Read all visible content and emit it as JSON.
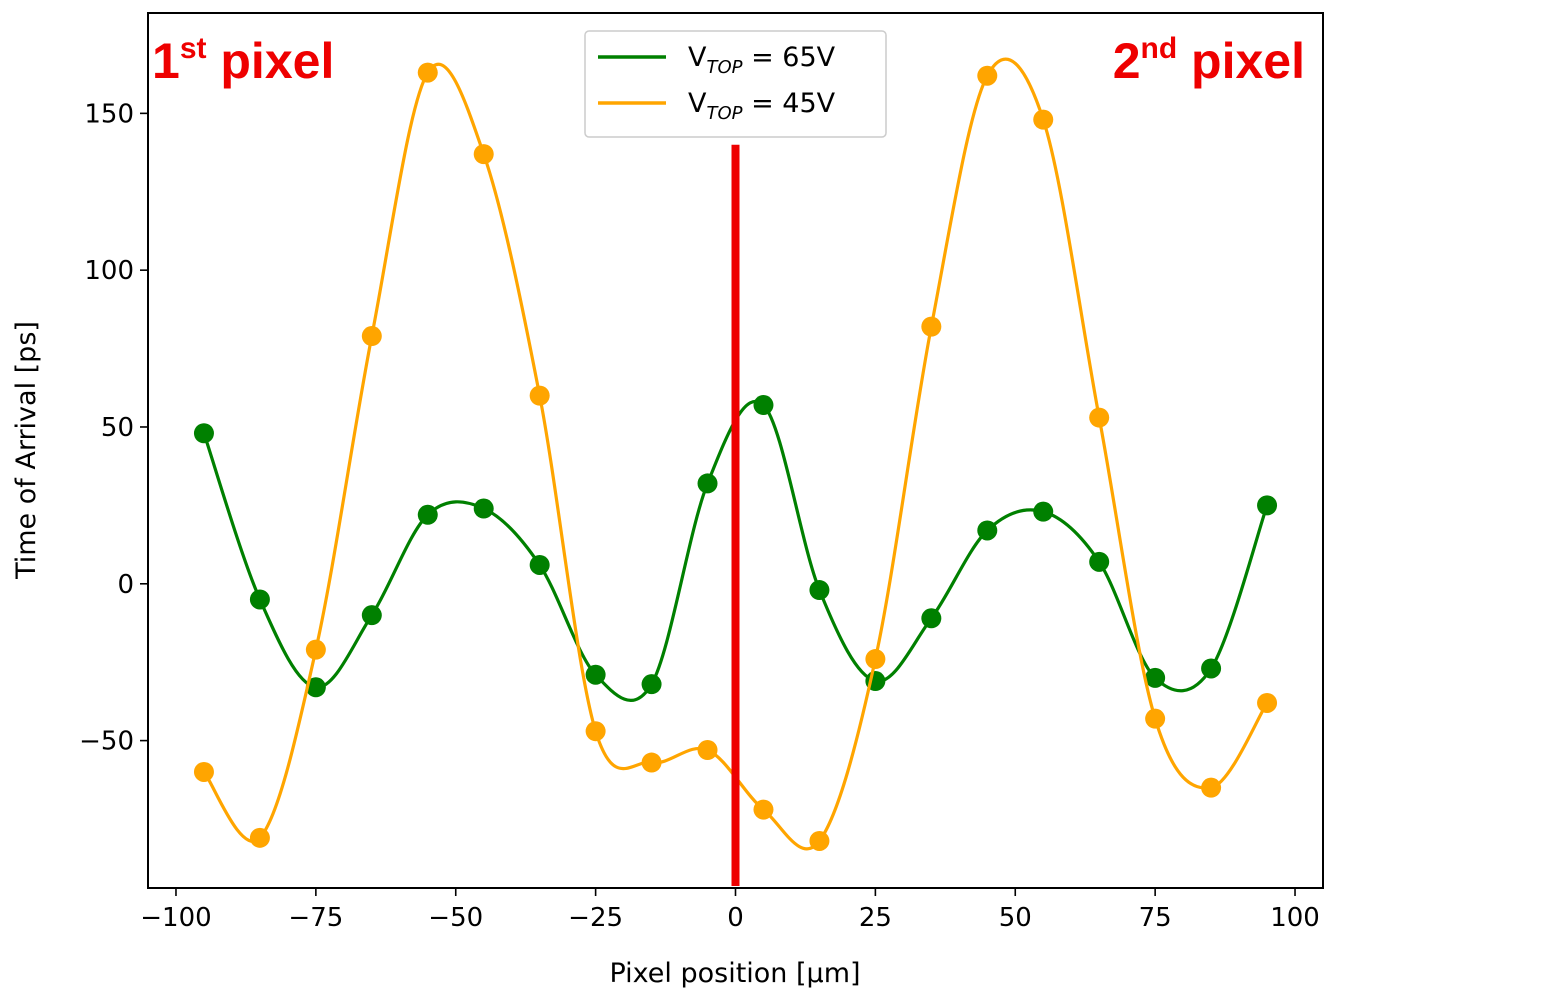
{
  "chart_data": {
    "type": "line",
    "title": "",
    "xlabel": "Pixel position [μm]",
    "ylabel": "Time of Arrival [ps]",
    "xlim": [
      -105,
      105
    ],
    "ylim": [
      -97,
      182
    ],
    "xticks": [
      -100,
      -75,
      -50,
      -25,
      0,
      25,
      50,
      75,
      100
    ],
    "yticks": [
      -50,
      0,
      50,
      100,
      150
    ],
    "xtick_labels": [
      "−100",
      "−75",
      "−50",
      "−25",
      "0",
      "25",
      "50",
      "75",
      "100"
    ],
    "ytick_labels": [
      "−50",
      "0",
      "50",
      "100",
      "150"
    ],
    "grid": false,
    "legend_position": "top-center",
    "series": [
      {
        "name": "V_TOP = 65V",
        "legend_main": "V",
        "legend_sub": "TOP",
        "legend_rest": " = 65V",
        "color": "#008000",
        "x": [
          -95,
          -85,
          -75,
          -65,
          -55,
          -45,
          -35,
          -25,
          -15,
          -5,
          5,
          15,
          25,
          35,
          45,
          55,
          65,
          75,
          85,
          95
        ],
        "values": [
          48,
          -5,
          -33,
          -10,
          22,
          24,
          6,
          -29,
          -32,
          32,
          57,
          -2,
          -31,
          -11,
          17,
          23,
          7,
          -30,
          -27,
          25
        ]
      },
      {
        "name": "V_TOP = 45V",
        "legend_main": "V",
        "legend_sub": "TOP",
        "legend_rest": " = 45V",
        "color": "#ffa500",
        "x": [
          -95,
          -85,
          -75,
          -65,
          -55,
          -45,
          -35,
          -25,
          -15,
          -5,
          5,
          15,
          25,
          35,
          45,
          55,
          65,
          75,
          85,
          95
        ],
        "values": [
          -60,
          -81,
          -21,
          79,
          163,
          137,
          60,
          -47,
          -57,
          -53,
          -72,
          -82,
          -24,
          82,
          162,
          148,
          53,
          -43,
          -65,
          -38
        ]
      }
    ],
    "annotations": {
      "divider": {
        "x": 0,
        "color": "#ee0000"
      },
      "left_label": {
        "number": "1",
        "suffix": "st",
        "word": " pixel"
      },
      "right_label": {
        "number": "2",
        "suffix": "nd",
        "word": " pixel"
      }
    }
  }
}
